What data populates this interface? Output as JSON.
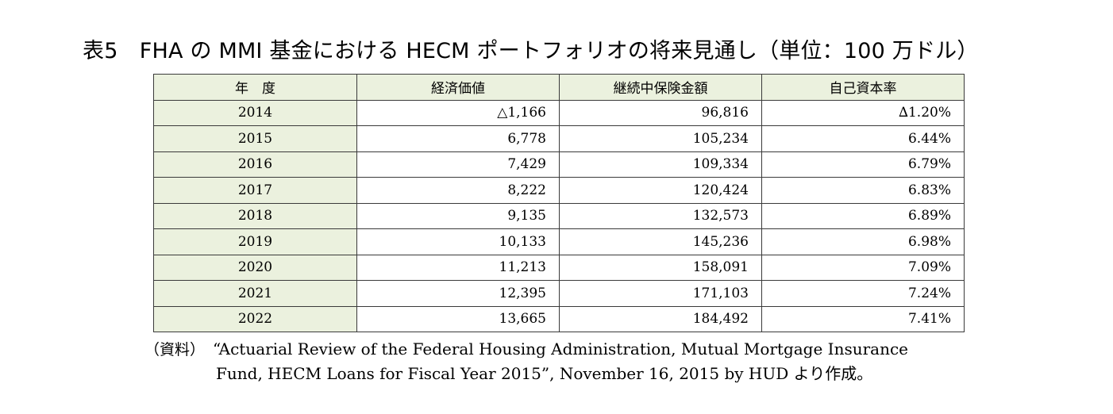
{
  "title": "表5　FHA の MMI 基金における HECM ポートフォリオの将来見通し（単位：100 万ドル）",
  "table": {
    "headers": [
      "年　度",
      "経済価値",
      "継続中保険金額",
      "自己資本率"
    ],
    "rows": [
      {
        "year": "2014",
        "economic_value": "△1,166",
        "insurance_in_force": "96,816",
        "capital_ratio": "∆1.20%"
      },
      {
        "year": "2015",
        "economic_value": "6,778",
        "insurance_in_force": "105,234",
        "capital_ratio": "6.44%"
      },
      {
        "year": "2016",
        "economic_value": "7,429",
        "insurance_in_force": "109,334",
        "capital_ratio": "6.79%"
      },
      {
        "year": "2017",
        "economic_value": "8,222",
        "insurance_in_force": "120,424",
        "capital_ratio": "6.83%"
      },
      {
        "year": "2018",
        "economic_value": "9,135",
        "insurance_in_force": "132,573",
        "capital_ratio": "6.89%"
      },
      {
        "year": "2019",
        "economic_value": "10,133",
        "insurance_in_force": "145,236",
        "capital_ratio": "6.98%"
      },
      {
        "year": "2020",
        "economic_value": "11,213",
        "insurance_in_force": "158,091",
        "capital_ratio": "7.09%"
      },
      {
        "year": "2021",
        "economic_value": "12,395",
        "insurance_in_force": "171,103",
        "capital_ratio": "7.24%"
      },
      {
        "year": "2022",
        "economic_value": "13,665",
        "insurance_in_force": "184,492",
        "capital_ratio": "7.41%"
      }
    ]
  },
  "source": {
    "label": "（資料）",
    "line1": "“Actuarial Review of the Federal Housing Administration, Mutual Mortgage Insurance",
    "line2": "Fund, HECM Loans for Fiscal Year 2015”, November 16, 2015 by HUD より作成。"
  },
  "colors": {
    "header_fill": "#ebf1de",
    "border": "#3a3a3a"
  }
}
